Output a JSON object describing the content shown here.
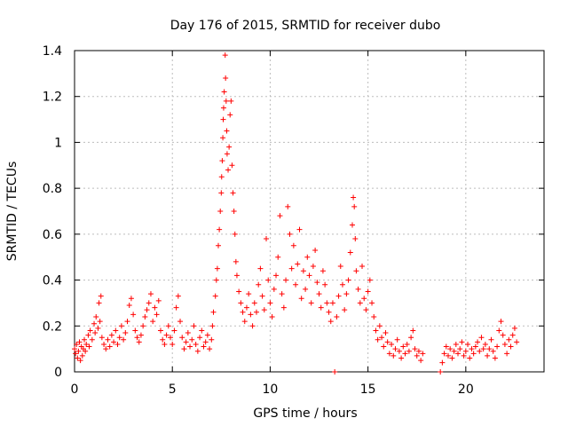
{
  "chart_data": {
    "type": "scatter",
    "title": "Day 176 of 2015, SRMTID for receiver dubo",
    "xlabel": "GPS time / hours",
    "ylabel": "SRMTID / TECUs",
    "xlim": [
      0,
      24
    ],
    "ylim": [
      0,
      1.4
    ],
    "x_ticks": [
      0,
      5,
      10,
      15,
      20
    ],
    "x_tick_labels": [
      "0",
      "5",
      "10",
      "15",
      "20"
    ],
    "y_ticks": [
      0,
      0.2,
      0.4,
      0.6,
      0.8,
      1.0,
      1.2,
      1.4
    ],
    "y_tick_labels": [
      "0",
      "0.2",
      "0.4",
      "0.6",
      "0.8",
      "1",
      "1.2",
      "1.4"
    ],
    "grid": true,
    "marker": "+",
    "color": "#ff0000",
    "series": [
      {
        "name": "SRMTID",
        "points": [
          [
            0.0,
            0.1
          ],
          [
            0.05,
            0.08
          ],
          [
            0.1,
            0.12
          ],
          [
            0.15,
            0.06
          ],
          [
            0.2,
            0.09
          ],
          [
            0.25,
            0.13
          ],
          [
            0.3,
            0.05
          ],
          [
            0.35,
            0.11
          ],
          [
            0.4,
            0.07
          ],
          [
            0.45,
            0.1
          ],
          [
            0.5,
            0.14
          ],
          [
            0.55,
            0.09
          ],
          [
            0.6,
            0.12
          ],
          [
            0.7,
            0.16
          ],
          [
            0.75,
            0.11
          ],
          [
            0.8,
            0.18
          ],
          [
            0.9,
            0.14
          ],
          [
            1.0,
            0.21
          ],
          [
            1.05,
            0.17
          ],
          [
            1.1,
            0.24
          ],
          [
            1.2,
            0.19
          ],
          [
            1.25,
            0.3
          ],
          [
            1.3,
            0.22
          ],
          [
            1.35,
            0.33
          ],
          [
            1.4,
            0.15
          ],
          [
            1.5,
            0.12
          ],
          [
            1.6,
            0.1
          ],
          [
            1.7,
            0.14
          ],
          [
            1.8,
            0.11
          ],
          [
            1.9,
            0.16
          ],
          [
            2.0,
            0.13
          ],
          [
            2.1,
            0.18
          ],
          [
            2.2,
            0.12
          ],
          [
            2.3,
            0.15
          ],
          [
            2.4,
            0.2
          ],
          [
            2.5,
            0.14
          ],
          [
            2.6,
            0.17
          ],
          [
            2.7,
            0.22
          ],
          [
            2.8,
            0.29
          ],
          [
            2.9,
            0.32
          ],
          [
            3.0,
            0.25
          ],
          [
            3.1,
            0.18
          ],
          [
            3.2,
            0.15
          ],
          [
            3.3,
            0.13
          ],
          [
            3.4,
            0.16
          ],
          [
            3.5,
            0.2
          ],
          [
            3.6,
            0.24
          ],
          [
            3.7,
            0.27
          ],
          [
            3.8,
            0.3
          ],
          [
            3.9,
            0.34
          ],
          [
            4.0,
            0.22
          ],
          [
            4.1,
            0.28
          ],
          [
            4.2,
            0.25
          ],
          [
            4.3,
            0.31
          ],
          [
            4.4,
            0.18
          ],
          [
            4.5,
            0.14
          ],
          [
            4.6,
            0.12
          ],
          [
            4.7,
            0.16
          ],
          [
            4.8,
            0.2
          ],
          [
            4.9,
            0.15
          ],
          [
            5.0,
            0.12
          ],
          [
            5.1,
            0.18
          ],
          [
            5.2,
            0.28
          ],
          [
            5.3,
            0.33
          ],
          [
            5.4,
            0.22
          ],
          [
            5.5,
            0.15
          ],
          [
            5.6,
            0.1
          ],
          [
            5.7,
            0.13
          ],
          [
            5.8,
            0.17
          ],
          [
            5.9,
            0.11
          ],
          [
            6.0,
            0.14
          ],
          [
            6.1,
            0.2
          ],
          [
            6.2,
            0.12
          ],
          [
            6.3,
            0.09
          ],
          [
            6.4,
            0.15
          ],
          [
            6.5,
            0.18
          ],
          [
            6.6,
            0.11
          ],
          [
            6.7,
            0.13
          ],
          [
            6.8,
            0.16
          ],
          [
            6.9,
            0.1
          ],
          [
            7.0,
            0.14
          ],
          [
            7.05,
            0.2
          ],
          [
            7.1,
            0.26
          ],
          [
            7.2,
            0.33
          ],
          [
            7.25,
            0.4
          ],
          [
            7.3,
            0.45
          ],
          [
            7.35,
            0.55
          ],
          [
            7.4,
            0.62
          ],
          [
            7.45,
            0.7
          ],
          [
            7.5,
            0.78
          ],
          [
            7.52,
            0.85
          ],
          [
            7.55,
            0.92
          ],
          [
            7.58,
            1.02
          ],
          [
            7.6,
            1.1
          ],
          [
            7.62,
            1.15
          ],
          [
            7.65,
            1.22
          ],
          [
            7.7,
            1.38
          ],
          [
            7.72,
            1.28
          ],
          [
            7.75,
            1.18
          ],
          [
            7.78,
            1.05
          ],
          [
            7.8,
            0.95
          ],
          [
            7.85,
            0.88
          ],
          [
            7.9,
            0.98
          ],
          [
            7.95,
            1.12
          ],
          [
            8.0,
            1.18
          ],
          [
            8.05,
            0.9
          ],
          [
            8.1,
            0.78
          ],
          [
            8.15,
            0.7
          ],
          [
            8.2,
            0.6
          ],
          [
            8.25,
            0.48
          ],
          [
            8.3,
            0.42
          ],
          [
            8.4,
            0.35
          ],
          [
            8.5,
            0.3
          ],
          [
            8.6,
            0.26
          ],
          [
            8.7,
            0.22
          ],
          [
            8.8,
            0.28
          ],
          [
            8.9,
            0.34
          ],
          [
            9.0,
            0.25
          ],
          [
            9.1,
            0.2
          ],
          [
            9.2,
            0.3
          ],
          [
            9.3,
            0.26
          ],
          [
            9.4,
            0.38
          ],
          [
            9.5,
            0.45
          ],
          [
            9.6,
            0.33
          ],
          [
            9.7,
            0.27
          ],
          [
            9.8,
            0.58
          ],
          [
            9.9,
            0.4
          ],
          [
            10.0,
            0.3
          ],
          [
            10.1,
            0.24
          ],
          [
            10.2,
            0.36
          ],
          [
            10.3,
            0.42
          ],
          [
            10.4,
            0.5
          ],
          [
            10.5,
            0.68
          ],
          [
            10.6,
            0.34
          ],
          [
            10.7,
            0.28
          ],
          [
            10.8,
            0.4
          ],
          [
            10.9,
            0.72
          ],
          [
            11.0,
            0.6
          ],
          [
            11.1,
            0.45
          ],
          [
            11.2,
            0.55
          ],
          [
            11.3,
            0.38
          ],
          [
            11.4,
            0.47
          ],
          [
            11.5,
            0.62
          ],
          [
            11.6,
            0.32
          ],
          [
            11.7,
            0.44
          ],
          [
            11.8,
            0.36
          ],
          [
            11.9,
            0.5
          ],
          [
            12.0,
            0.42
          ],
          [
            12.1,
            0.3
          ],
          [
            12.2,
            0.46
          ],
          [
            12.3,
            0.53
          ],
          [
            12.4,
            0.39
          ],
          [
            12.5,
            0.34
          ],
          [
            12.6,
            0.28
          ],
          [
            12.7,
            0.44
          ],
          [
            12.8,
            0.38
          ],
          [
            12.9,
            0.3
          ],
          [
            13.0,
            0.26
          ],
          [
            13.1,
            0.22
          ],
          [
            13.2,
            0.3
          ],
          [
            13.3,
            0.0
          ],
          [
            13.4,
            0.24
          ],
          [
            13.5,
            0.33
          ],
          [
            13.6,
            0.46
          ],
          [
            13.7,
            0.38
          ],
          [
            13.8,
            0.27
          ],
          [
            13.9,
            0.34
          ],
          [
            14.0,
            0.4
          ],
          [
            14.1,
            0.52
          ],
          [
            14.2,
            0.64
          ],
          [
            14.25,
            0.76
          ],
          [
            14.3,
            0.72
          ],
          [
            14.35,
            0.58
          ],
          [
            14.4,
            0.44
          ],
          [
            14.5,
            0.36
          ],
          [
            14.6,
            0.3
          ],
          [
            14.7,
            0.46
          ],
          [
            14.8,
            0.32
          ],
          [
            14.9,
            0.27
          ],
          [
            15.0,
            0.35
          ],
          [
            15.1,
            0.4
          ],
          [
            15.2,
            0.3
          ],
          [
            15.3,
            0.24
          ],
          [
            15.4,
            0.18
          ],
          [
            15.5,
            0.14
          ],
          [
            15.6,
            0.2
          ],
          [
            15.7,
            0.15
          ],
          [
            15.8,
            0.11
          ],
          [
            15.9,
            0.17
          ],
          [
            16.0,
            0.13
          ],
          [
            16.1,
            0.08
          ],
          [
            16.2,
            0.12
          ],
          [
            16.3,
            0.07
          ],
          [
            16.4,
            0.1
          ],
          [
            16.5,
            0.14
          ],
          [
            16.6,
            0.09
          ],
          [
            16.7,
            0.06
          ],
          [
            16.8,
            0.11
          ],
          [
            16.9,
            0.08
          ],
          [
            17.0,
            0.12
          ],
          [
            17.1,
            0.09
          ],
          [
            17.2,
            0.15
          ],
          [
            17.3,
            0.18
          ],
          [
            17.4,
            0.1
          ],
          [
            17.5,
            0.07
          ],
          [
            17.6,
            0.09
          ],
          [
            17.7,
            0.05
          ],
          [
            17.8,
            0.08
          ],
          [
            18.7,
            0.0
          ],
          [
            18.8,
            0.04
          ],
          [
            18.9,
            0.08
          ],
          [
            19.0,
            0.11
          ],
          [
            19.1,
            0.07
          ],
          [
            19.2,
            0.1
          ],
          [
            19.3,
            0.06
          ],
          [
            19.4,
            0.09
          ],
          [
            19.5,
            0.12
          ],
          [
            19.6,
            0.08
          ],
          [
            19.7,
            0.1
          ],
          [
            19.8,
            0.13
          ],
          [
            19.9,
            0.07
          ],
          [
            20.0,
            0.09
          ],
          [
            20.1,
            0.12
          ],
          [
            20.2,
            0.06
          ],
          [
            20.3,
            0.1
          ],
          [
            20.4,
            0.08
          ],
          [
            20.5,
            0.11
          ],
          [
            20.6,
            0.13
          ],
          [
            20.7,
            0.09
          ],
          [
            20.8,
            0.15
          ],
          [
            20.9,
            0.1
          ],
          [
            21.0,
            0.12
          ],
          [
            21.1,
            0.07
          ],
          [
            21.2,
            0.1
          ],
          [
            21.3,
            0.14
          ],
          [
            21.4,
            0.09
          ],
          [
            21.5,
            0.06
          ],
          [
            21.6,
            0.11
          ],
          [
            21.7,
            0.18
          ],
          [
            21.8,
            0.22
          ],
          [
            21.9,
            0.16
          ],
          [
            22.0,
            0.12
          ],
          [
            22.1,
            0.08
          ],
          [
            22.2,
            0.14
          ],
          [
            22.3,
            0.11
          ],
          [
            22.4,
            0.16
          ],
          [
            22.5,
            0.19
          ],
          [
            22.6,
            0.13
          ]
        ]
      }
    ]
  }
}
